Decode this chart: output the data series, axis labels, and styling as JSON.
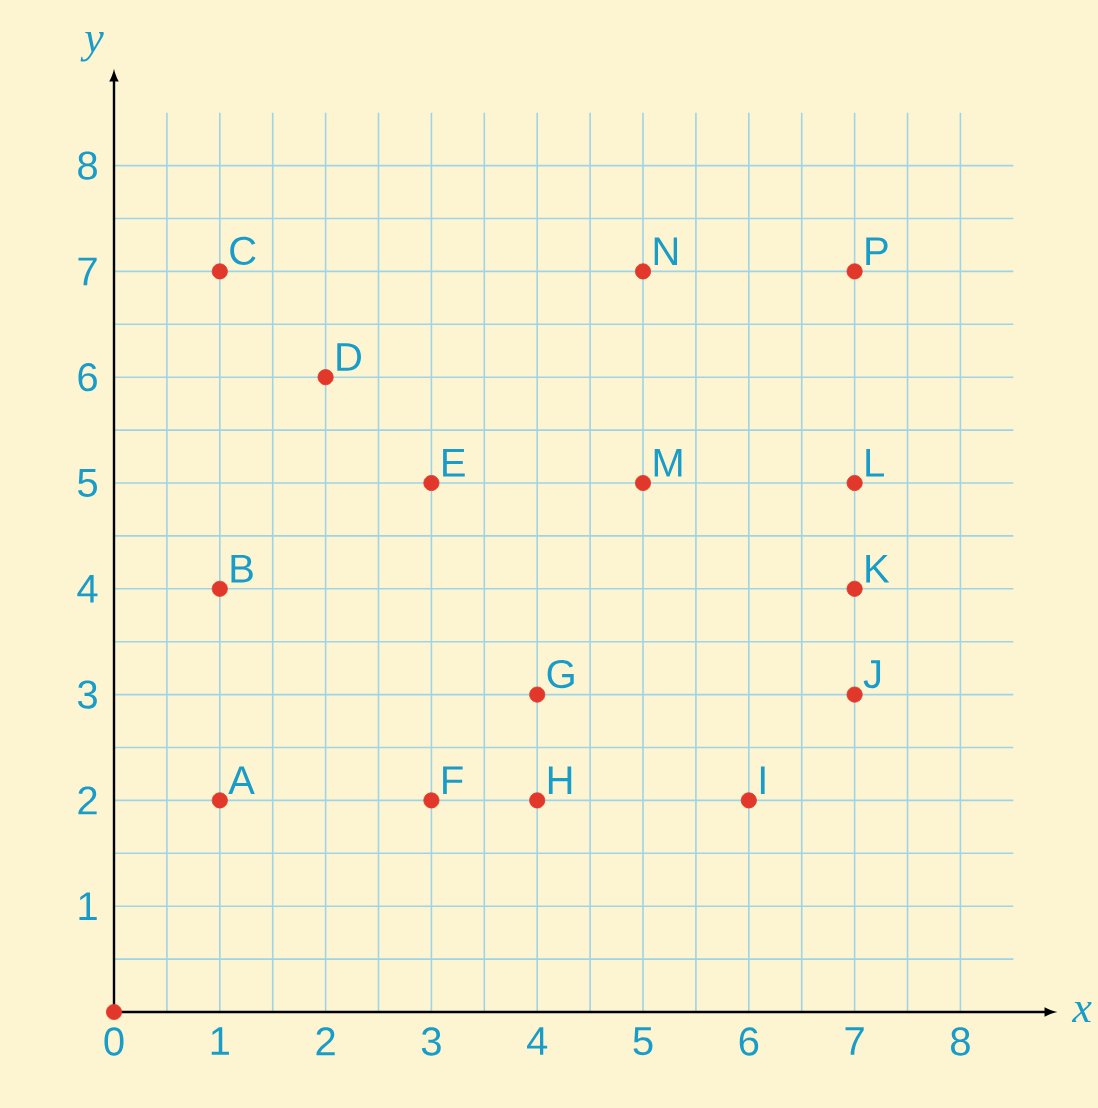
{
  "chart_data": {
    "type": "scatter",
    "xlabel": "x",
    "ylabel": "y",
    "x": [
      0,
      1,
      1,
      1,
      2,
      3,
      3,
      4,
      4,
      6,
      7,
      7,
      7,
      5,
      5,
      7
    ],
    "values": [
      0,
      2,
      4,
      7,
      6,
      5,
      2,
      3,
      2,
      2,
      3,
      4,
      5,
      5,
      7,
      7
    ],
    "color": "#e2382b",
    "marker": "circle",
    "grid": true,
    "xlim": [
      0,
      8.5
    ],
    "ylim": [
      0,
      8.5
    ],
    "xticks": [
      0,
      1,
      2,
      3,
      4,
      5,
      6,
      7,
      8
    ],
    "yticks": [
      {
        "value": 0,
        "label": null
      },
      1,
      2,
      3,
      4,
      5,
      6,
      7,
      8
    ],
    "annotations": [
      {
        "text": "A",
        "x": 1,
        "y": 2
      },
      {
        "text": "B",
        "x": 1,
        "y": 4
      },
      {
        "text": "C",
        "x": 1,
        "y": 7
      },
      {
        "text": "D",
        "x": 2,
        "y": 6
      },
      {
        "text": "E",
        "x": 3,
        "y": 5
      },
      {
        "text": "F",
        "x": 3,
        "y": 2
      },
      {
        "text": "G",
        "x": 4,
        "y": 3
      },
      {
        "text": "H",
        "x": 4,
        "y": 2
      },
      {
        "text": "I",
        "x": 6,
        "y": 2
      },
      {
        "text": "J",
        "x": 7,
        "y": 3
      },
      {
        "text": "K",
        "x": 7,
        "y": 4
      },
      {
        "text": "L",
        "x": 7,
        "y": 5
      },
      {
        "text": "M",
        "x": 5,
        "y": 5
      },
      {
        "text": "N",
        "x": 5,
        "y": 7
      },
      {
        "text": "P",
        "x": 7,
        "y": 7
      }
    ]
  }
}
